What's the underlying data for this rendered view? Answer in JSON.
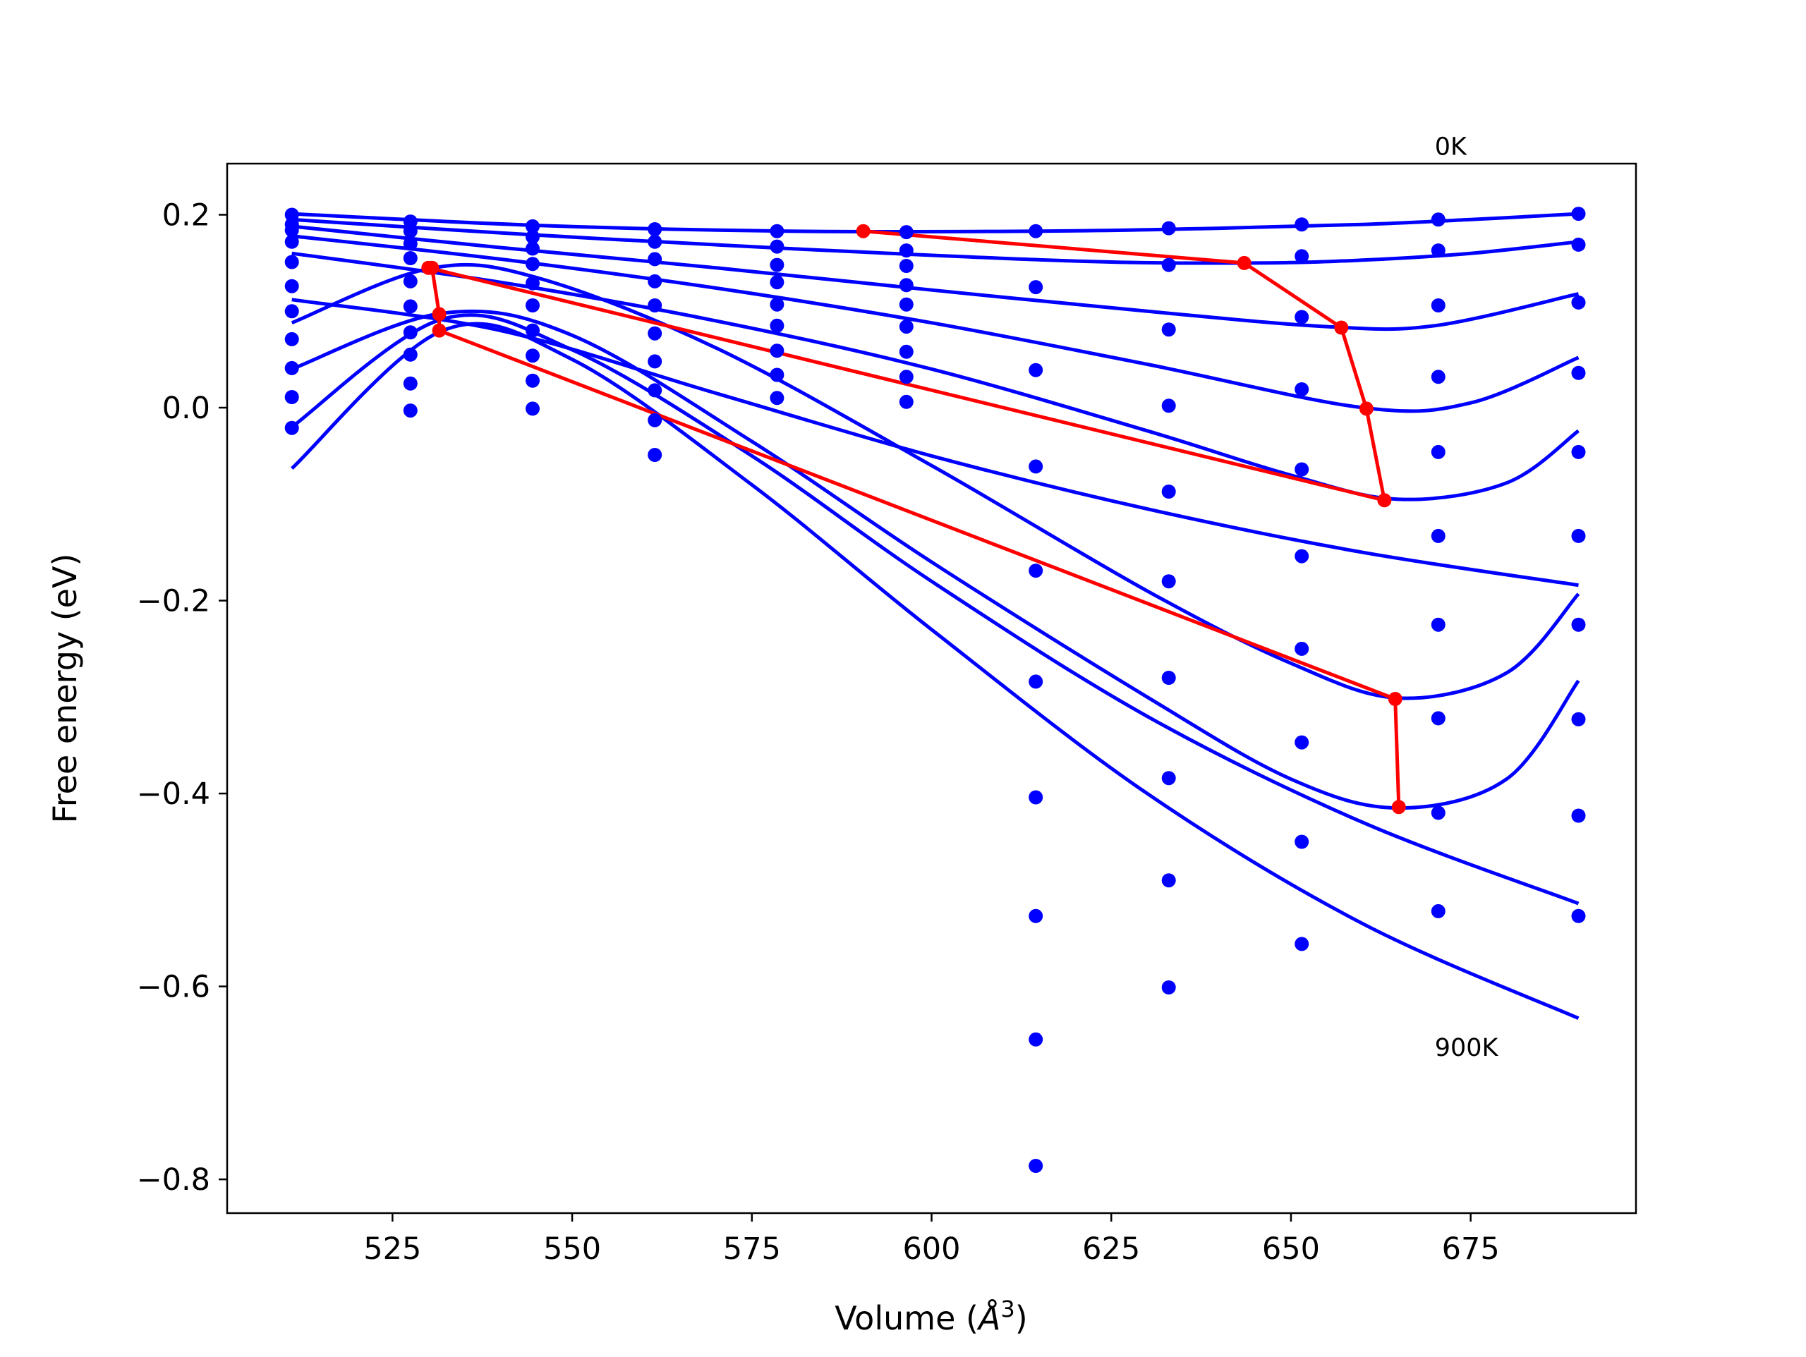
{
  "chart_data": {
    "type": "scatter",
    "xlabel_prefix": "Volume (",
    "xlabel_unit_base": "Å",
    "xlabel_unit_exp": "3",
    "xlabel_suffix": ")",
    "ylabel": "Free energy (eV)",
    "xlim": [
      502,
      698
    ],
    "ylim": [
      -0.835,
      0.253
    ],
    "xticks": [
      525,
      550,
      575,
      600,
      625,
      650,
      675
    ],
    "yticks": [
      0.2,
      0.0,
      -0.2,
      -0.4,
      -0.6,
      -0.8
    ],
    "ytick_labels": [
      "0.2",
      "0.0",
      "−0.2",
      "−0.4",
      "−0.6",
      "−0.8"
    ],
    "grid": false,
    "legend": "none",
    "annotations": [
      {
        "text": "0K",
        "x": 670,
        "y": 0.262
      },
      {
        "text": "900K",
        "x": 670,
        "y": -0.672
      }
    ],
    "colors": {
      "data": "#0000ff",
      "min_path": "#ff0000"
    },
    "volumes": [
      511,
      527.5,
      544.5,
      561.5,
      578.5,
      596.5,
      614.5,
      633,
      651.5,
      670.5,
      690
    ],
    "series": [
      {
        "points": [
          0.2,
          0.193,
          0.188,
          0.185,
          0.183,
          0.182,
          0.183,
          0.186,
          0.19,
          0.195,
          0.201
        ]
      },
      {
        "points": [
          0.19,
          0.183,
          0.177,
          0.172,
          0.167,
          0.163,
          null,
          0.148,
          0.157,
          0.163,
          0.169
        ]
      },
      {
        "points": [
          0.184,
          0.17,
          0.165,
          0.154,
          0.148,
          0.147,
          0.125,
          0.081,
          0.094,
          0.106,
          0.109
        ]
      },
      {
        "points": [
          0.172,
          0.155,
          0.149,
          0.131,
          0.13,
          0.127,
          0.039,
          0.002,
          0.019,
          0.032,
          0.036
        ]
      },
      {
        "points": [
          0.151,
          0.131,
          0.129,
          0.106,
          0.107,
          0.107,
          -0.061,
          -0.087,
          -0.064,
          -0.046,
          -0.046
        ]
      },
      {
        "points": [
          0.126,
          0.105,
          0.106,
          0.077,
          0.085,
          0.084,
          -0.169,
          -0.18,
          -0.154,
          -0.133,
          -0.133
        ]
      },
      {
        "points": [
          0.1,
          0.078,
          0.08,
          0.048,
          0.059,
          0.058,
          -0.284,
          -0.28,
          -0.25,
          -0.225,
          -0.225
        ]
      },
      {
        "points": [
          0.071,
          0.055,
          0.054,
          0.018,
          0.034,
          0.032,
          -0.404,
          -0.384,
          -0.347,
          -0.322,
          -0.323
        ]
      },
      {
        "points": [
          0.041,
          0.025,
          0.028,
          -0.013,
          0.01,
          0.006,
          -0.527,
          -0.49,
          -0.45,
          -0.42,
          -0.423
        ]
      },
      {
        "points": [
          0.011,
          -0.003,
          -0.001,
          -0.049,
          null,
          null,
          -0.655,
          -0.601,
          -0.556,
          -0.522,
          -0.527
        ]
      },
      {
        "points": [
          -0.021,
          null,
          null,
          null,
          null,
          null,
          -0.786,
          null,
          null,
          null,
          null
        ]
      }
    ],
    "fit_curves": [
      {
        "x": [
          511,
          545,
          580,
          615,
          640,
          660,
          675,
          690
        ],
        "y": [
          0.201,
          0.189,
          0.183,
          0.183,
          0.186,
          0.19,
          0.195,
          0.201
        ]
      },
      {
        "x": [
          511,
          545,
          580,
          620,
          645,
          660,
          675,
          690
        ],
        "y": [
          0.195,
          0.179,
          0.165,
          0.152,
          0.15,
          0.153,
          0.16,
          0.172
        ]
      },
      {
        "x": [
          511,
          540,
          570,
          600,
          630,
          655,
          670,
          690
        ],
        "y": [
          0.188,
          0.166,
          0.145,
          0.122,
          0.1,
          0.084,
          0.085,
          0.118
        ]
      },
      {
        "x": [
          511,
          540,
          570,
          600,
          630,
          660,
          675,
          690
        ],
        "y": [
          0.178,
          0.154,
          0.124,
          0.088,
          0.045,
          0.0,
          0.005,
          0.052
        ]
      },
      {
        "x": [
          511,
          540,
          570,
          600,
          630,
          650,
          665,
          680,
          690
        ],
        "y": [
          0.16,
          0.13,
          0.09,
          0.04,
          -0.024,
          -0.07,
          -0.095,
          -0.078,
          -0.024
        ]
      },
      {
        "x": [
          511,
          540,
          570,
          600,
          630,
          660,
          690
        ],
        "y": [
          0.112,
          0.08,
          0.015,
          -0.05,
          -0.105,
          -0.15,
          -0.184
        ]
      },
      {
        "x": [
          511,
          530,
          545,
          570,
          600,
          630,
          650,
          665,
          680,
          690
        ],
        "y": [
          0.088,
          0.144,
          0.135,
          0.062,
          -0.06,
          -0.19,
          -0.265,
          -0.301,
          -0.275,
          -0.193
        ]
      },
      {
        "x": [
          511,
          532,
          550,
          575,
          600,
          630,
          650,
          665,
          680,
          690
        ],
        "y": [
          0.04,
          0.098,
          0.075,
          -0.035,
          -0.16,
          -0.3,
          -0.385,
          -0.415,
          -0.385,
          -0.283
        ]
      },
      {
        "x": [
          511,
          532,
          550,
          575,
          600,
          630,
          660,
          690
        ],
        "y": [
          -0.02,
          0.092,
          0.06,
          -0.05,
          -0.18,
          -0.32,
          -0.43,
          -0.514
        ]
      },
      {
        "x": [
          511,
          532,
          550,
          575,
          600,
          630,
          660,
          690
        ],
        "y": [
          -0.063,
          0.08,
          0.05,
          -0.08,
          -0.23,
          -0.4,
          -0.535,
          -0.633
        ]
      }
    ],
    "min_path": {
      "x": [
        590.5,
        643.5,
        657.0,
        660.5,
        663.0,
        530.0,
        530.5,
        531.5,
        531.5,
        664.5,
        665.0
      ],
      "y": [
        0.183,
        0.15,
        0.083,
        -0.001,
        -0.096,
        0.145,
        0.145,
        0.097,
        0.08,
        -0.302,
        -0.414
      ]
    }
  }
}
